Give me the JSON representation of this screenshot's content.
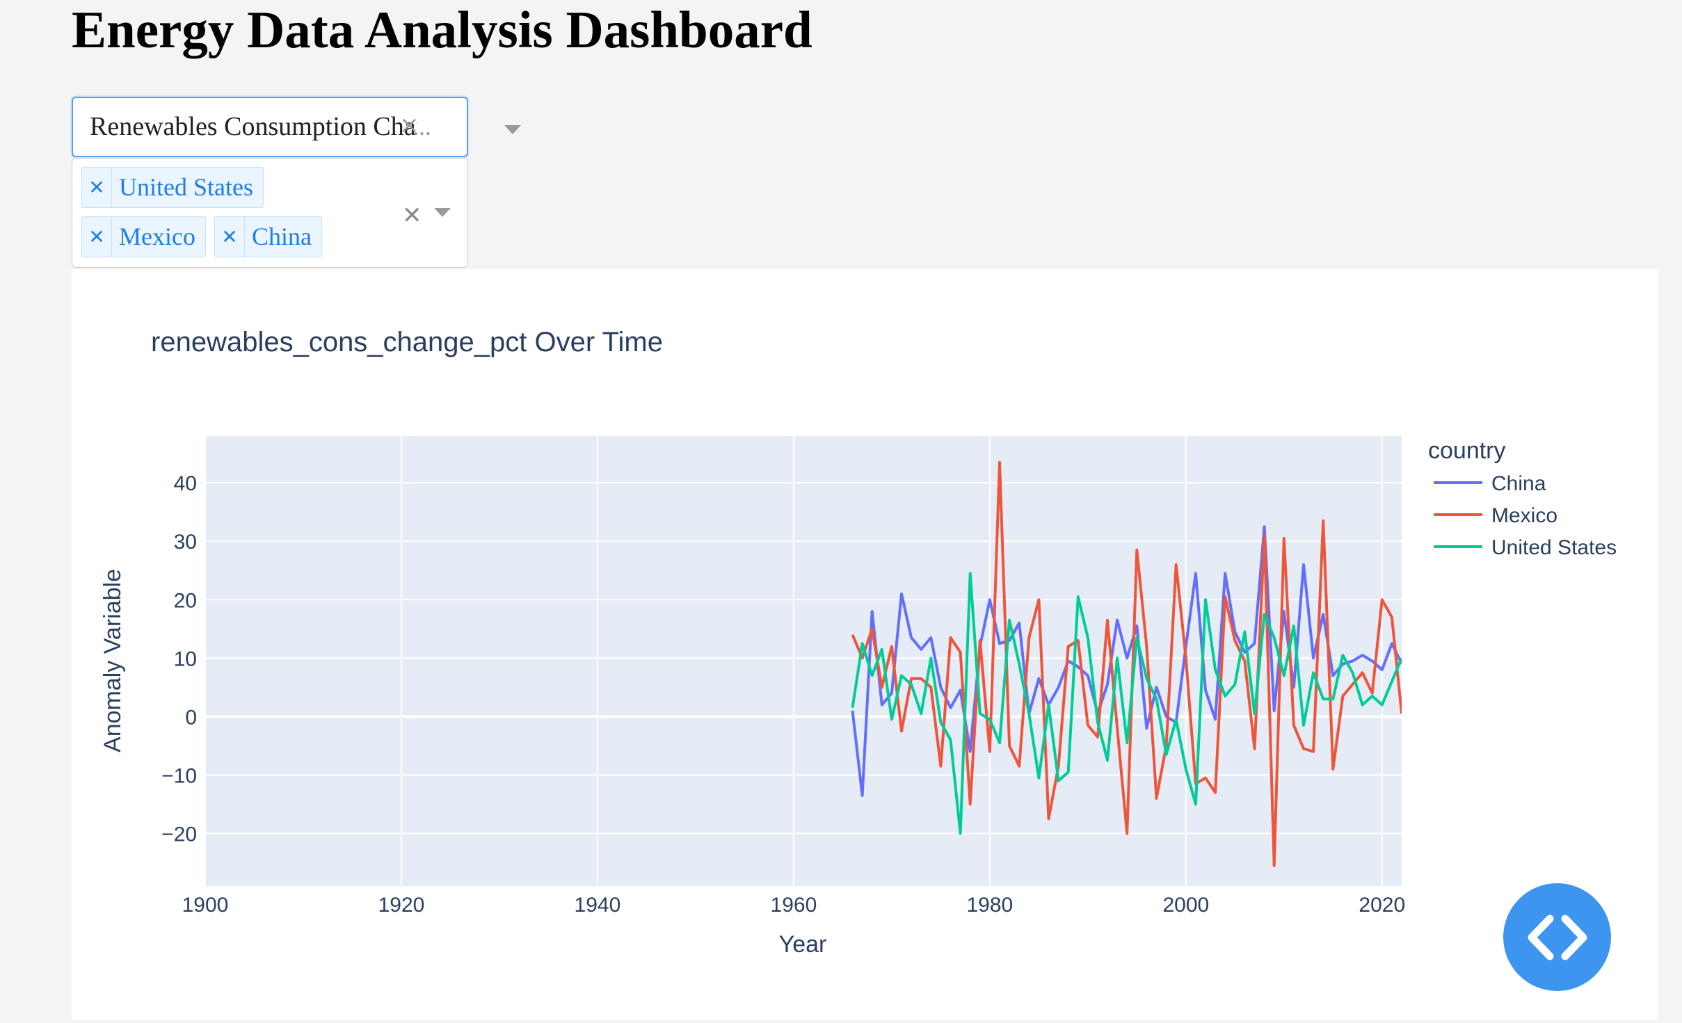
{
  "page": {
    "title": "Energy Data Analysis Dashboard"
  },
  "variable_dropdown": {
    "selected": "Renewables Consumption Change %",
    "ellipsis": "..."
  },
  "country_dropdown": {
    "selected": [
      "United States",
      "Mexico",
      "China"
    ]
  },
  "colors": {
    "China": "#636efa",
    "Mexico": "#ef553b",
    "United States": "#00cc96",
    "plot_bg": "#e5ecf6",
    "fab": "#3d95ef"
  },
  "icons": {
    "fab": "code-icon",
    "tag_remove": "close-icon",
    "clear": "close-icon",
    "caret": "chevron-down-icon"
  },
  "chart_data": {
    "type": "line",
    "title": "renewables_cons_change_pct Over Time",
    "xlabel": "Year",
    "ylabel": "Anomaly Variable",
    "xlim": [
      1900,
      2022
    ],
    "ylim": [
      -29,
      48
    ],
    "xticks": [
      1900,
      1920,
      1940,
      1960,
      1980,
      2000,
      2020
    ],
    "yticks": [
      -20,
      -10,
      0,
      10,
      20,
      30,
      40
    ],
    "ytick_labels": [
      "−20",
      "−10",
      "0",
      "10",
      "20",
      "30",
      "40"
    ],
    "grid": true,
    "legend_title": "country",
    "legend_position": "right",
    "x": [
      1966,
      1967,
      1968,
      1969,
      1970,
      1971,
      1972,
      1973,
      1974,
      1975,
      1976,
      1977,
      1978,
      1979,
      1980,
      1981,
      1982,
      1983,
      1984,
      1985,
      1986,
      1987,
      1988,
      1989,
      1990,
      1991,
      1992,
      1993,
      1994,
      1995,
      1996,
      1997,
      1998,
      1999,
      2000,
      2001,
      2002,
      2003,
      2004,
      2005,
      2006,
      2007,
      2008,
      2009,
      2010,
      2011,
      2012,
      2013,
      2014,
      2015,
      2016,
      2017,
      2018,
      2019,
      2020,
      2021,
      2022
    ],
    "series": [
      {
        "name": "China",
        "values": [
          1,
          -13.5,
          18,
          2,
          4,
          21,
          13.5,
          11.5,
          13.5,
          5,
          1.5,
          4.5,
          -6,
          12,
          20,
          12.5,
          13,
          16,
          0.5,
          6.5,
          2,
          5,
          9.5,
          8.5,
          7,
          0.5,
          5.5,
          16.5,
          10,
          15.5,
          -2,
          5,
          0,
          -1,
          12,
          24.5,
          4.5,
          -0.5,
          24.5,
          14.5,
          11,
          12.5,
          32.5,
          1,
          18,
          5,
          26,
          10,
          17.5,
          7,
          9,
          9.5,
          10.5,
          9.5,
          8,
          12.5,
          9
        ]
      },
      {
        "name": "Mexico",
        "values": [
          14,
          10,
          15,
          5,
          12,
          -2.5,
          6.5,
          6.5,
          5,
          -8.5,
          13.5,
          11,
          -15,
          13,
          -6,
          43.5,
          -5,
          -8.5,
          13.5,
          20,
          -17.5,
          -8.5,
          12,
          13,
          -1.5,
          -3.5,
          16.5,
          -2,
          -20,
          28.5,
          12,
          -14,
          -5,
          26,
          10,
          -11.5,
          -10.5,
          -13,
          20.5,
          13,
          9.5,
          -5.5,
          31,
          -25.5,
          30.5,
          -1.5,
          -5.5,
          -6,
          33.5,
          -9,
          3.5,
          5.5,
          7.5,
          4,
          20,
          17,
          0.5
        ]
      },
      {
        "name": "United States",
        "values": [
          1.5,
          12.5,
          7,
          11.5,
          -0.5,
          7,
          5.5,
          0.5,
          10,
          -1,
          -4,
          -20,
          24.5,
          0.5,
          -0.5,
          -4.5,
          16.5,
          9,
          0.5,
          -10.5,
          2,
          -11,
          -9.5,
          20.5,
          13.5,
          -1,
          -7.5,
          10,
          -4.5,
          13.5,
          6.5,
          3,
          -6.5,
          -0.5,
          -9,
          -15,
          20,
          8,
          3.5,
          5.5,
          14.5,
          0.5,
          17.5,
          13.5,
          7,
          15.5,
          -1.5,
          7.5,
          3,
          3,
          10.5,
          7.5,
          2,
          3.5,
          2,
          6,
          10
        ]
      }
    ]
  }
}
